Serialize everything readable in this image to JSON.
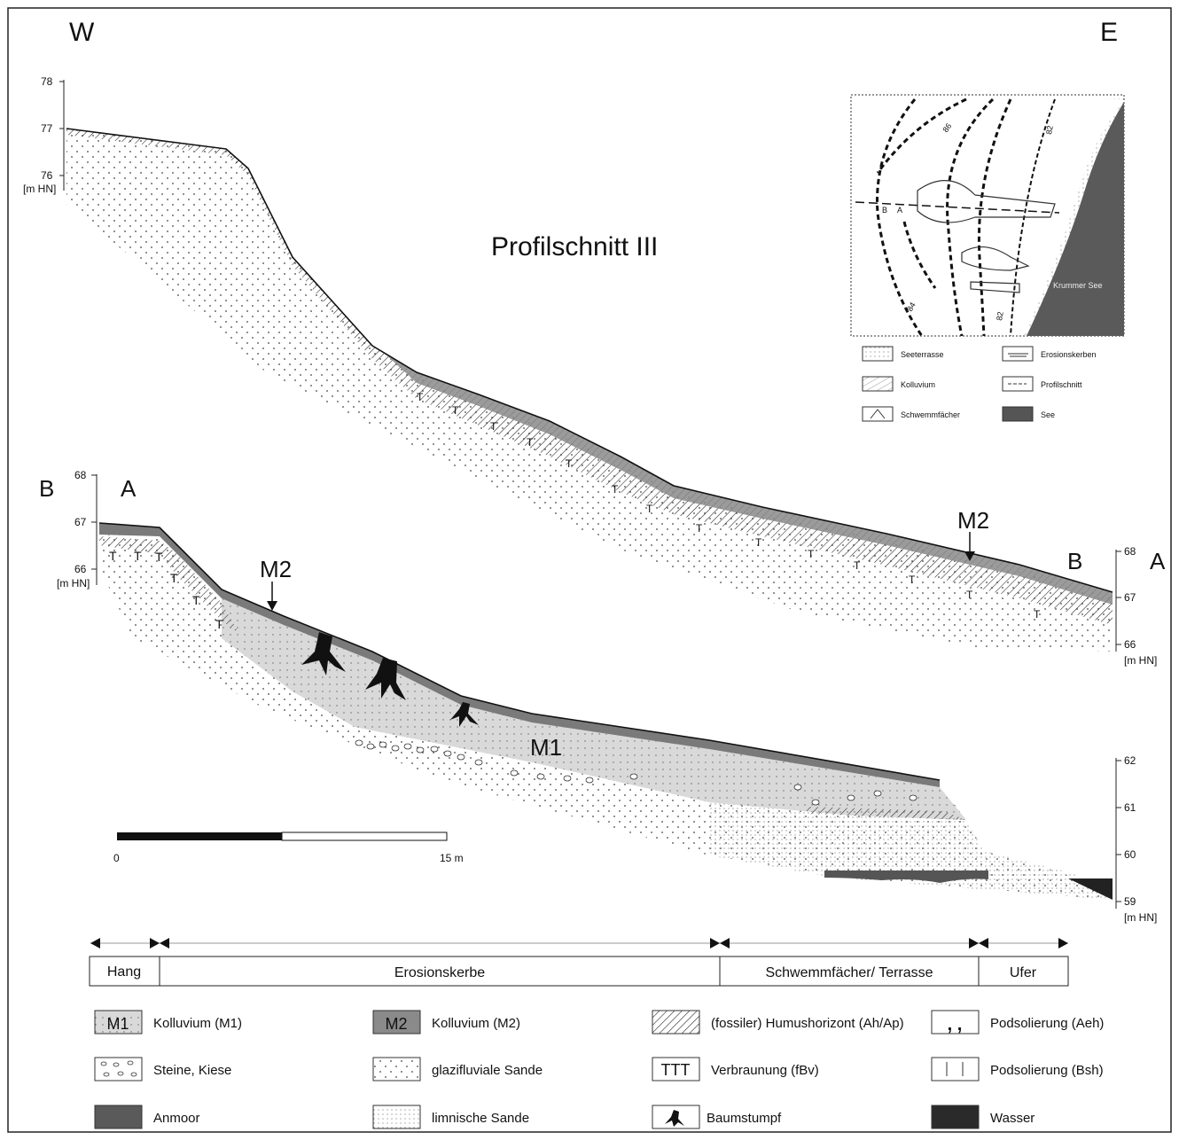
{
  "compass": {
    "west": "W",
    "east": "E"
  },
  "title": "Profilschnitt III",
  "upper_profile": {
    "axis_ticks": [
      "78",
      "77",
      "76"
    ],
    "axis_unit": "[m HN]",
    "right_ticks": [
      "68",
      "67",
      "66"
    ],
    "right_unit": "[m HN]",
    "marker_m2": "M2",
    "end_label_b": "B",
    "end_label_a": "A"
  },
  "lower_profile": {
    "start_label_b": "B",
    "start_label_a": "A",
    "axis_ticks": [
      "68",
      "67",
      "66"
    ],
    "axis_unit": "[m HN]",
    "right_ticks": [
      "62",
      "61",
      "60",
      "59"
    ],
    "right_unit": "[m HN]",
    "marker_m2": "M2",
    "label_m1": "M1"
  },
  "scale_bar": {
    "start": "0",
    "end": "15 m"
  },
  "inset_map": {
    "lake_label": "Krummer See",
    "contours": [
      "86",
      "84",
      "82",
      "82"
    ],
    "section_labels": [
      "B",
      "A"
    ],
    "legend": [
      {
        "pattern": "dots",
        "label": "Seeterrasse"
      },
      {
        "pattern": "wave",
        "label": "Erosionskerben"
      },
      {
        "pattern": "hatch",
        "label": "Kolluvium"
      },
      {
        "pattern": "dash",
        "label": "Profilschnitt"
      },
      {
        "pattern": "fan",
        "label": "Schwemmfächer"
      },
      {
        "pattern": "dark",
        "label": "See"
      }
    ]
  },
  "segments": [
    {
      "label": "Hang"
    },
    {
      "label": "Erosionskerbe"
    },
    {
      "label": "Schwemmfächer/ Terrasse"
    },
    {
      "label": "Ufer"
    }
  ],
  "legend": [
    {
      "swatch_text": "M1",
      "label": "Kolluvium (M1)",
      "pattern": "m1"
    },
    {
      "swatch_text": "M2",
      "label": "Kolluvium (M2)",
      "pattern": "m2"
    },
    {
      "swatch_text": "",
      "label": "(fossiler) Humushorizont (Ah/Ap)",
      "pattern": "hatch"
    },
    {
      "swatch_text": "",
      "label": "Podsolierung (Aeh)",
      "pattern": "commas"
    },
    {
      "swatch_text": "",
      "label": "Steine, Kiese",
      "pattern": "stones"
    },
    {
      "swatch_text": "",
      "label": "glazifluviale Sande",
      "pattern": "dots"
    },
    {
      "swatch_text": "TTT",
      "label": "Verbraunung (fBv)",
      "pattern": "ttt"
    },
    {
      "swatch_text": "",
      "label": "Podsolierung (Bsh)",
      "pattern": "bars"
    },
    {
      "swatch_text": "",
      "label": "Anmoor",
      "pattern": "anmoor"
    },
    {
      "swatch_text": "",
      "label": "limnische Sande",
      "pattern": "finedots"
    },
    {
      "swatch_text": "",
      "label": "Baumstumpf",
      "pattern": "stump"
    },
    {
      "swatch_text": "",
      "label": "Wasser",
      "pattern": "water"
    }
  ]
}
